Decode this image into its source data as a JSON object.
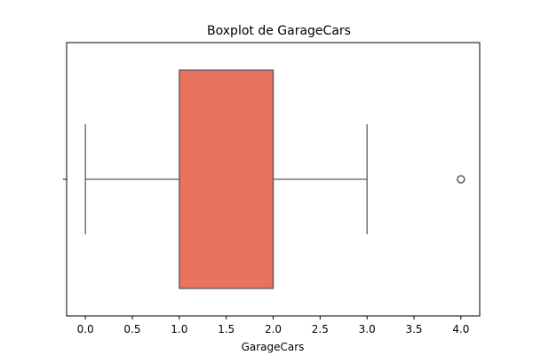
{
  "chart_data": {
    "type": "boxplot",
    "title": "Boxplot de GarageCars",
    "xlabel": "GarageCars",
    "ylabel": "",
    "xlim": [
      -0.2,
      4.2
    ],
    "xticks": [
      0.0,
      0.5,
      1.0,
      1.5,
      2.0,
      2.5,
      3.0,
      3.5,
      4.0
    ],
    "xtick_labels": [
      "0.0",
      "0.5",
      "1.0",
      "1.5",
      "2.0",
      "2.5",
      "3.0",
      "3.5",
      "4.0"
    ],
    "box": {
      "whisker_low": 0.0,
      "q1": 1.0,
      "median": 2.0,
      "q3": 2.0,
      "whisker_high": 3.0
    },
    "outliers": [
      4.0
    ],
    "grid": false,
    "colors": {
      "box_fill": "#e8735f",
      "box_edge": "#5a5a5a",
      "whisker": "#5a5a5a",
      "outlier_edge": "#5a5a5a"
    }
  }
}
